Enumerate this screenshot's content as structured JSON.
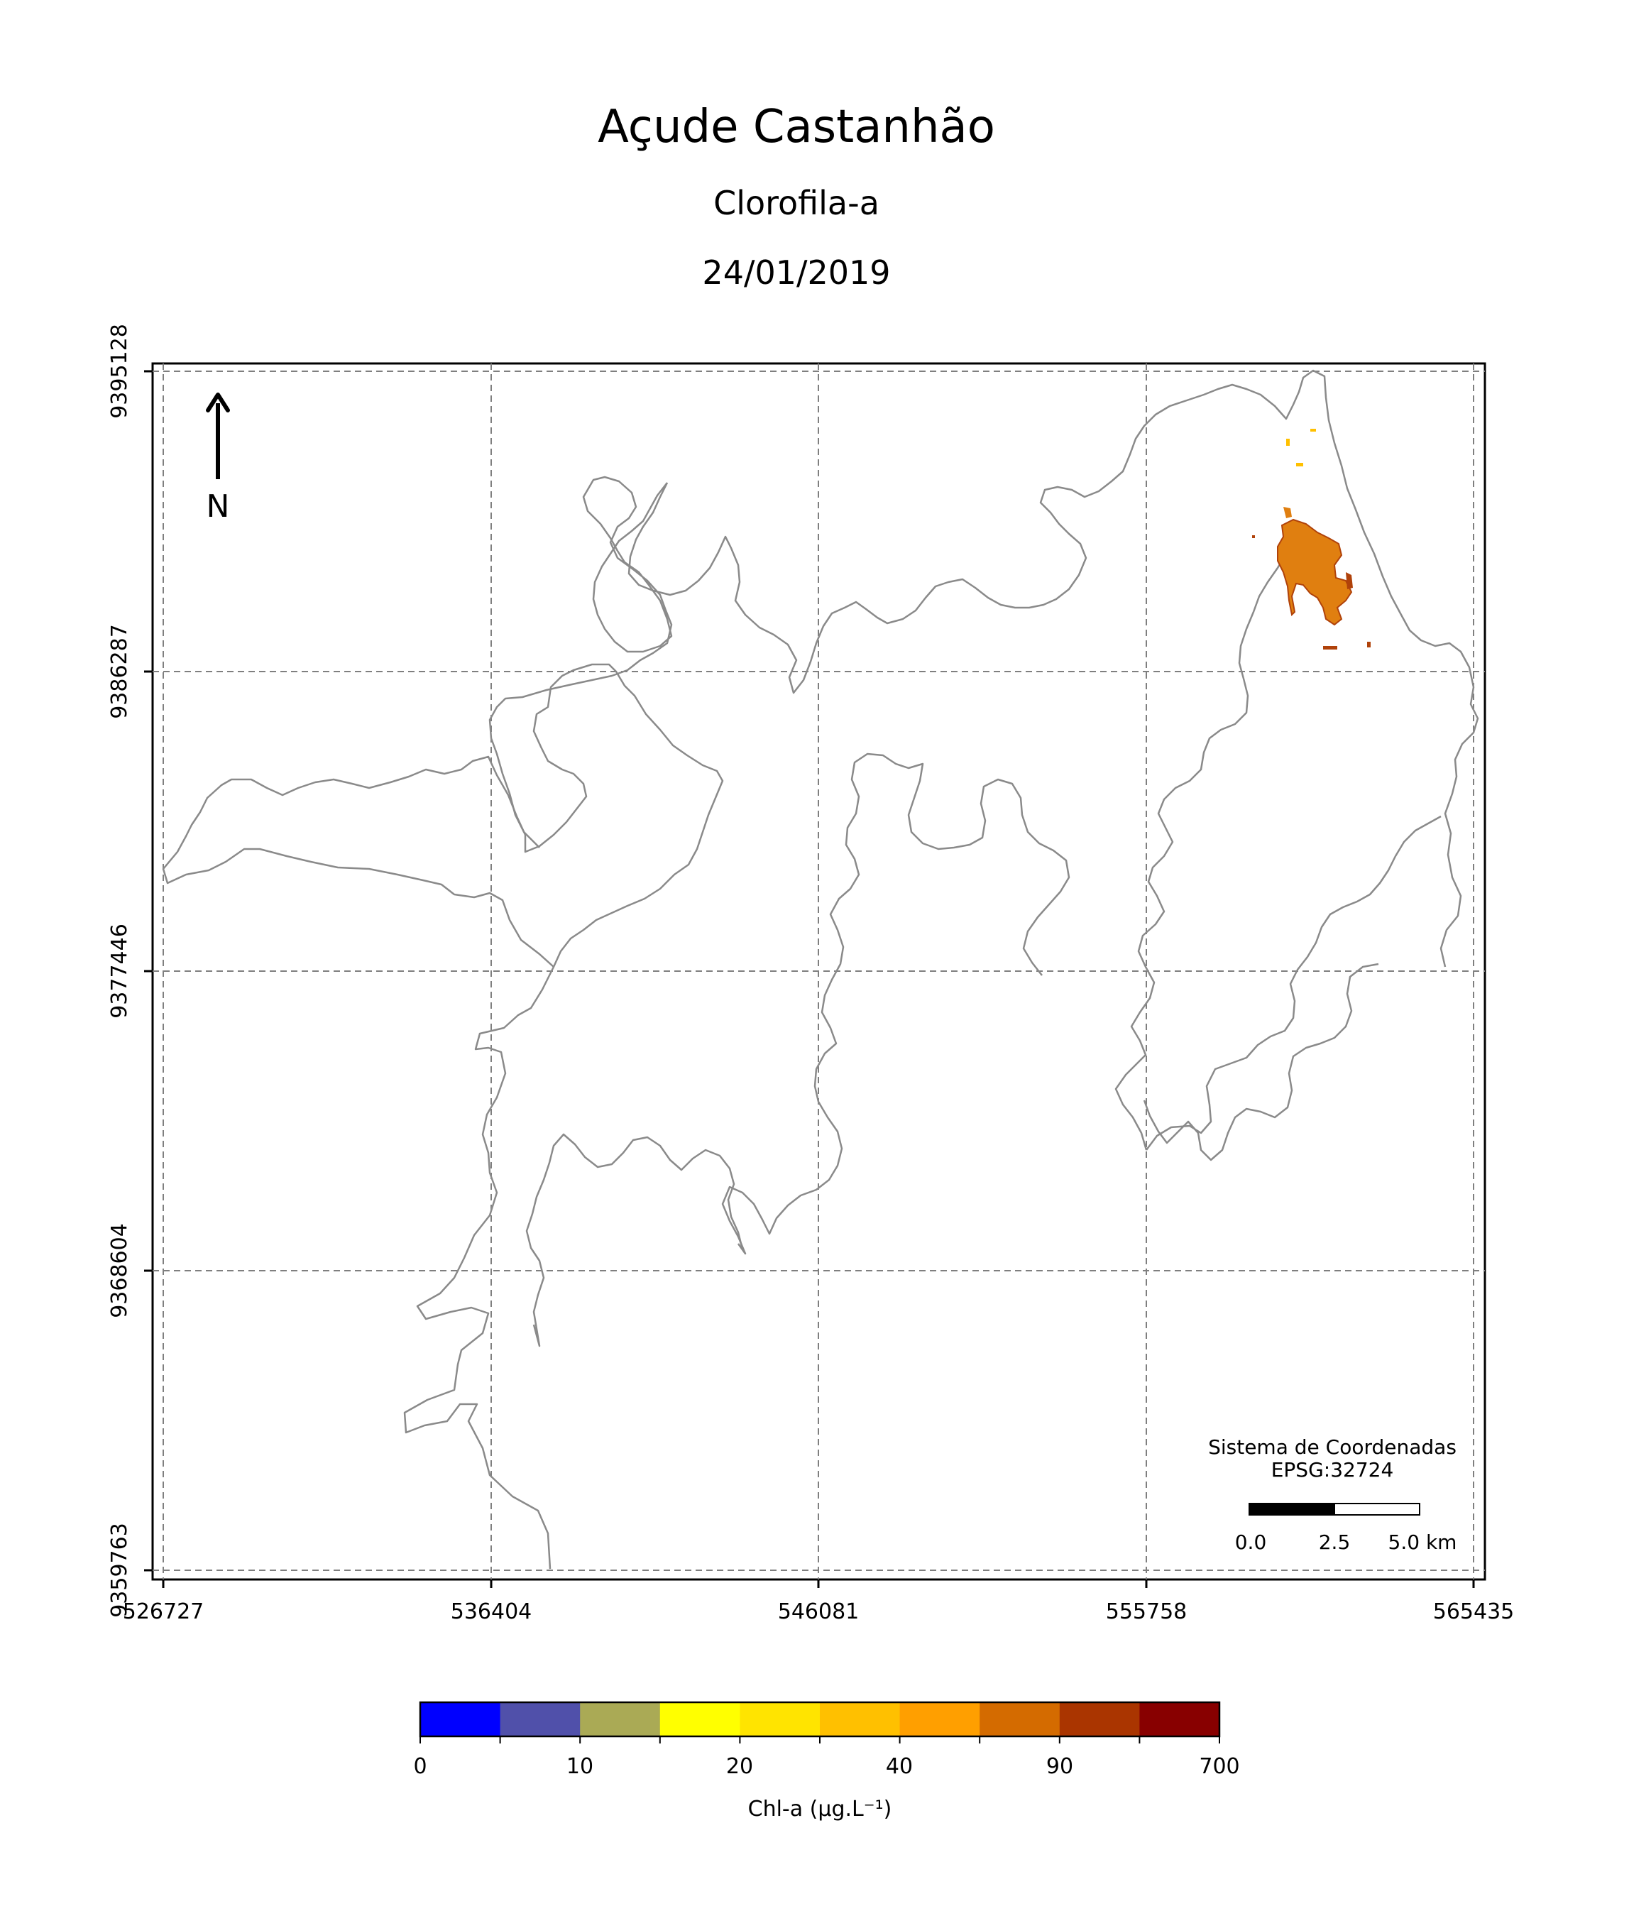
{
  "header": {
    "title": "Açude Castanhão",
    "subtitle": "Clorofila-a",
    "date": "24/01/2019"
  },
  "map": {
    "x_ticks": [
      "526727",
      "536404",
      "546081",
      "555758",
      "565435"
    ],
    "y_ticks": [
      "9395128",
      "9386287",
      "9377446",
      "9368604",
      "9359763"
    ],
    "north_label": "N",
    "crs_label": "Sistema de Coordenadas",
    "crs_code": "EPSG:32724",
    "scale_labels": [
      "0.0",
      "2.5",
      "5.0 km"
    ],
    "colors": {
      "outline": "#8a8a8a",
      "grid": "#7f7f7f",
      "bloom_main": "#e07f10",
      "bloom_dark": "#b0420a",
      "bloom_light": "#ffc000"
    }
  },
  "colorbar": {
    "label": "Chl-a (μg.L⁻¹)",
    "tick_labels": [
      "0",
      "10",
      "20",
      "40",
      "90",
      "700"
    ],
    "colors": [
      "#0000ff",
      "#5050aa",
      "#aaaa55",
      "#ffff00",
      "#ffe400",
      "#ffc000",
      "#ff9f00",
      "#d46b00",
      "#aa3500",
      "#880000"
    ]
  }
}
